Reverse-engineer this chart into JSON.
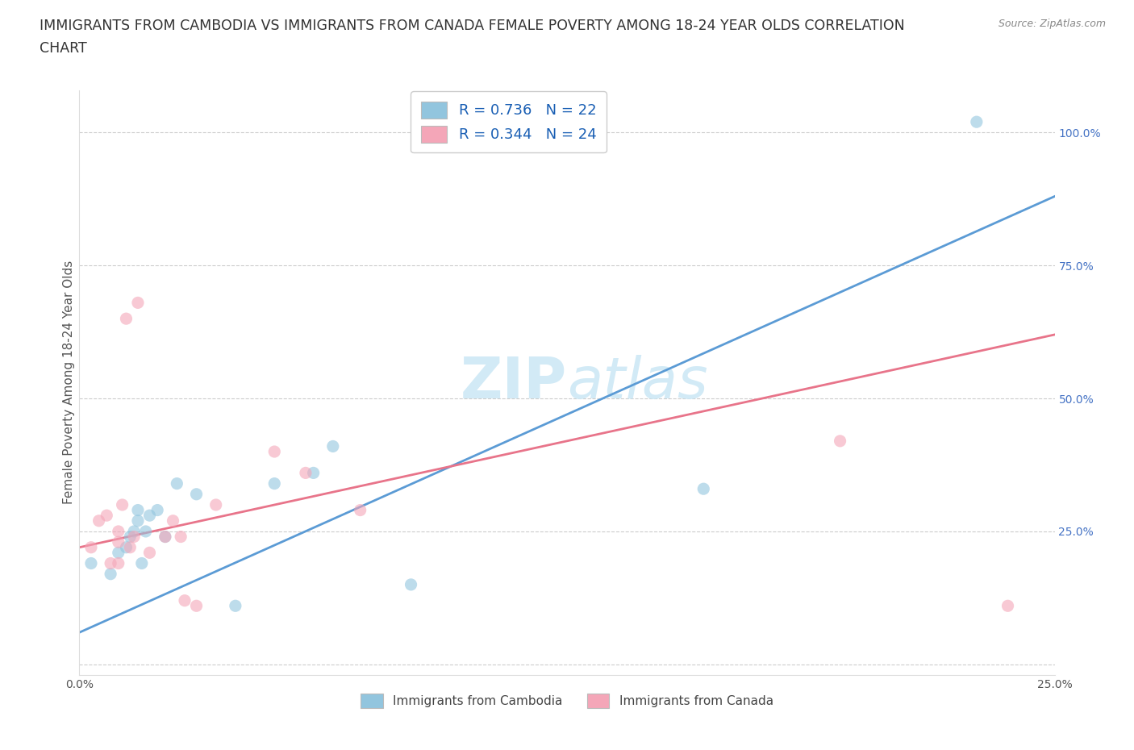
{
  "title_line1": "IMMIGRANTS FROM CAMBODIA VS IMMIGRANTS FROM CANADA FEMALE POVERTY AMONG 18-24 YEAR OLDS CORRELATION",
  "title_line2": "CHART",
  "source": "Source: ZipAtlas.com",
  "ylabel": "Female Poverty Among 18-24 Year Olds",
  "xlim": [
    0.0,
    0.25
  ],
  "ylim": [
    -0.02,
    1.08
  ],
  "x_ticks": [
    0.0,
    0.05,
    0.1,
    0.15,
    0.2,
    0.25
  ],
  "y_ticks": [
    0.0,
    0.25,
    0.5,
    0.75,
    1.0
  ],
  "blue_color": "#92c5de",
  "pink_color": "#f4a6b8",
  "blue_line_color": "#5b9bd5",
  "pink_line_color": "#e8748a",
  "watermark_color": "#cde8f5",
  "legend_text_blue": "R = 0.736   N = 22",
  "legend_text_pink": "R = 0.344   N = 24",
  "legend_label_blue": "Immigrants from Cambodia",
  "legend_label_pink": "Immigrants from Canada",
  "blue_x": [
    0.003,
    0.008,
    0.01,
    0.012,
    0.013,
    0.014,
    0.015,
    0.015,
    0.016,
    0.017,
    0.018,
    0.02,
    0.022,
    0.025,
    0.03,
    0.04,
    0.05,
    0.06,
    0.065,
    0.085,
    0.16,
    0.23
  ],
  "blue_y": [
    0.19,
    0.17,
    0.21,
    0.22,
    0.24,
    0.25,
    0.27,
    0.29,
    0.19,
    0.25,
    0.28,
    0.29,
    0.24,
    0.34,
    0.32,
    0.11,
    0.34,
    0.36,
    0.41,
    0.15,
    0.33,
    1.02
  ],
  "pink_x": [
    0.003,
    0.005,
    0.007,
    0.008,
    0.01,
    0.01,
    0.01,
    0.011,
    0.012,
    0.013,
    0.014,
    0.015,
    0.018,
    0.022,
    0.024,
    0.026,
    0.027,
    0.03,
    0.035,
    0.05,
    0.058,
    0.072,
    0.195,
    0.238
  ],
  "pink_y": [
    0.22,
    0.27,
    0.28,
    0.19,
    0.19,
    0.23,
    0.25,
    0.3,
    0.65,
    0.22,
    0.24,
    0.68,
    0.21,
    0.24,
    0.27,
    0.24,
    0.12,
    0.11,
    0.3,
    0.4,
    0.36,
    0.29,
    0.42,
    0.11
  ],
  "blue_line_x": [
    0.0,
    0.25
  ],
  "blue_line_y": [
    0.06,
    0.88
  ],
  "pink_line_x": [
    0.0,
    0.25
  ],
  "pink_line_y": [
    0.22,
    0.62
  ],
  "bg_color": "#ffffff",
  "grid_color": "#cccccc",
  "title_fontsize": 12.5,
  "axis_label_fontsize": 11,
  "tick_fontsize": 10,
  "dot_size": 120,
  "dot_alpha": 0.6,
  "legend_color": "#1a5fb4"
}
